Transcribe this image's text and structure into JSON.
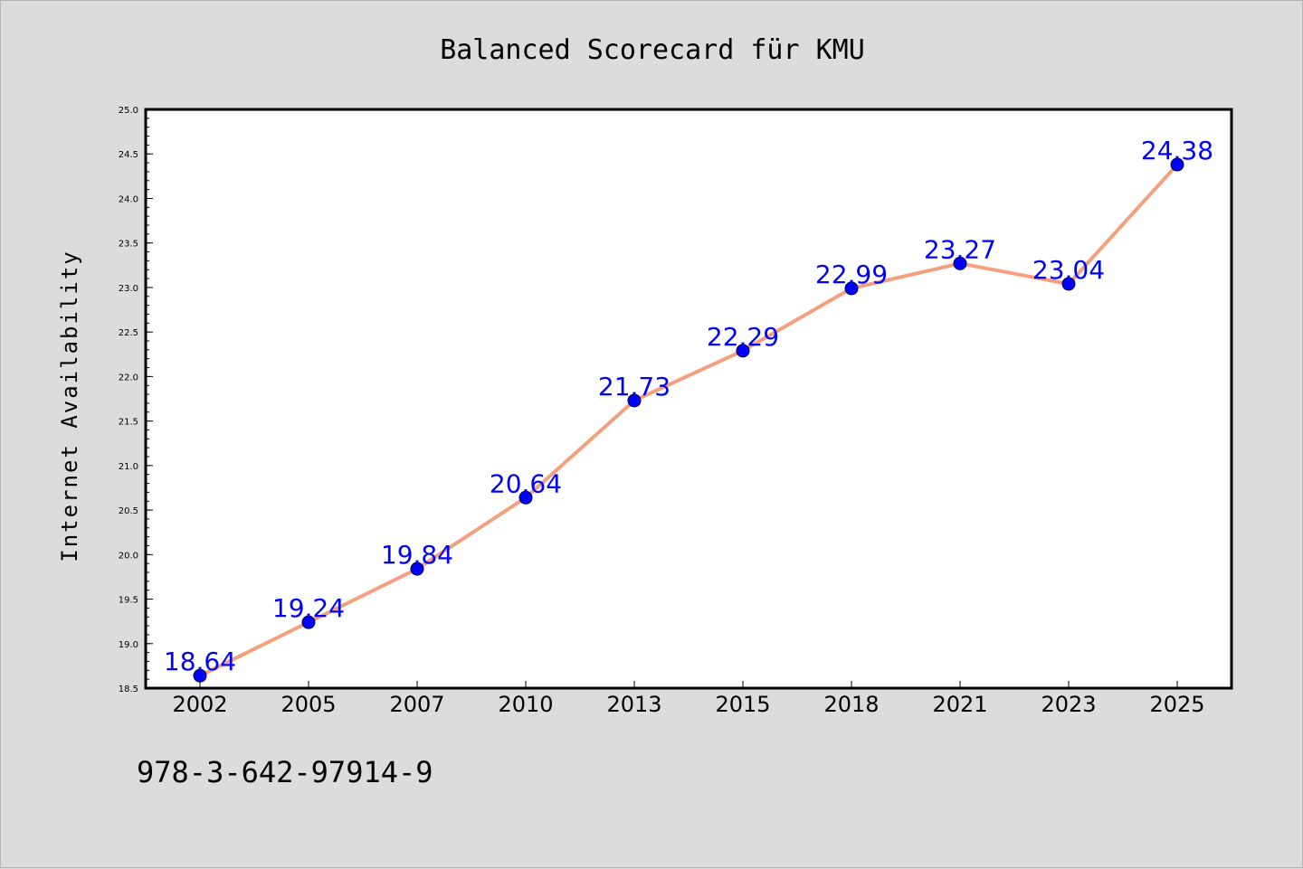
{
  "chart_data": {
    "type": "line",
    "title": "Balanced Scorecard für KMU",
    "xlabel": "",
    "ylabel": "Internet Availability",
    "categories": [
      "2002",
      "2005",
      "2007",
      "2010",
      "2013",
      "2015",
      "2018",
      "2021",
      "2023",
      "2025"
    ],
    "series": [
      {
        "values": [
          18.64,
          19.24,
          19.84,
          20.64,
          21.73,
          22.29,
          22.99,
          23.27,
          23.04,
          24.38
        ]
      }
    ],
    "data_labels": [
      "18.64",
      "19.24",
      "19.84",
      "20.64",
      "21.73",
      "22.29",
      "22.99",
      "23.27",
      "23.04",
      "24.38"
    ],
    "ylim": [
      18.5,
      25.0
    ],
    "yticks": [
      "18.5",
      "19.0",
      "19.5",
      "20.0",
      "20.5",
      "21.0",
      "21.5",
      "22.0",
      "22.5",
      "23.0",
      "23.5",
      "24.0",
      "24.5",
      "25.0"
    ],
    "grid": false,
    "legend": "none",
    "colors": {
      "line": "#f4a07e",
      "marker": "#0000ff",
      "label": "#0000ff",
      "background": "#dcdcdc",
      "plot_background": "#ffffff"
    }
  },
  "footer": {
    "text": "978-3-642-97914-9"
  }
}
